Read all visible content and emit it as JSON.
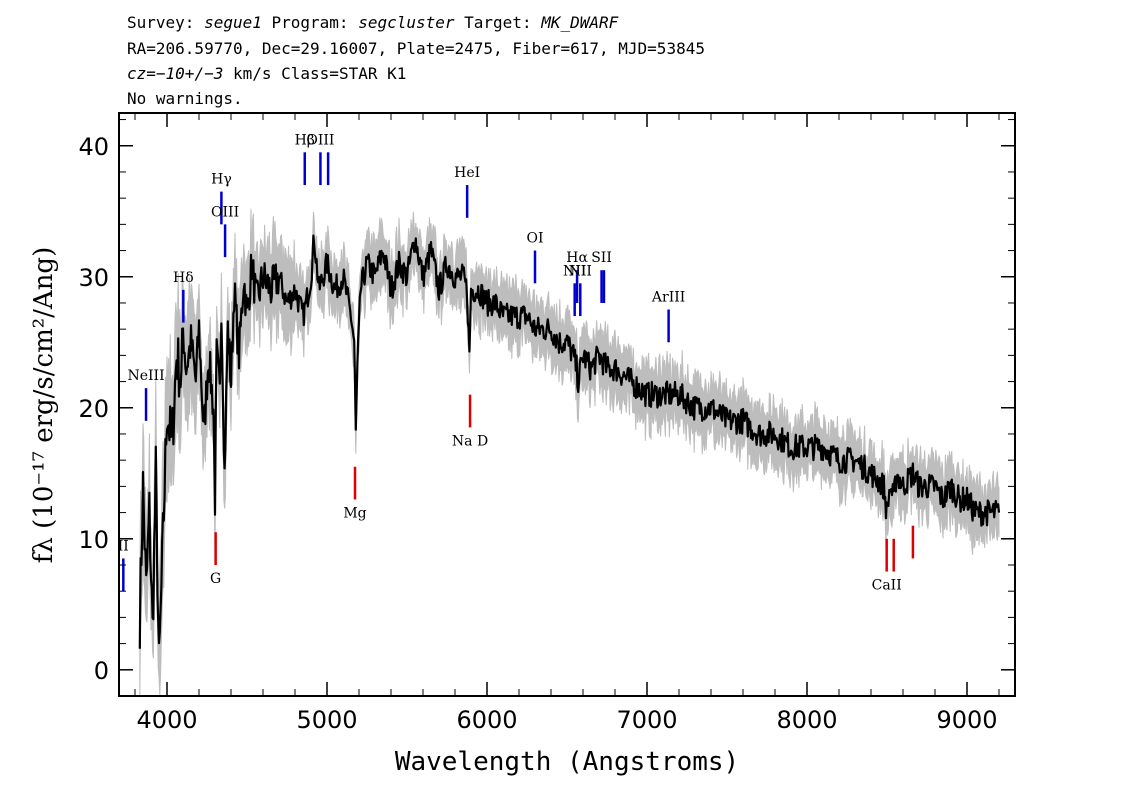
{
  "header": {
    "line1": {
      "survey_label": "Survey: ",
      "survey": "segue1",
      "program_label": " Program: ",
      "program": "segcluster",
      "target_label": " Target: ",
      "target": "MK_DWARF"
    },
    "line2": "RA=206.59770, Dec=29.16007, Plate=2475, Fiber=617, MJD=53845",
    "line3": {
      "cz_label": "cz=",
      "cz_value": "−10+/−3",
      "rest": " km/s Class=STAR K1"
    },
    "line4": "No warnings."
  },
  "chart_data": {
    "type": "line",
    "title": "",
    "xlabel": "Wavelength (Angstroms)",
    "ylabel": "fλ (10⁻¹⁷ erg/s/cm²/Ang)",
    "xlim": [
      3700,
      9300
    ],
    "ylim": [
      -2,
      42.5
    ],
    "xticks": [
      4000,
      5000,
      6000,
      7000,
      8000,
      9000
    ],
    "yticks": [
      0,
      10,
      20,
      30,
      40
    ],
    "grid": false,
    "series": [
      {
        "style": "flux",
        "color": "#000000",
        "x": [
          3830,
          3850,
          3870,
          3890,
          3910,
          3930,
          3950,
          3970,
          4000,
          4030,
          4060,
          4090,
          4100,
          4120,
          4150,
          4180,
          4200,
          4230,
          4260,
          4290,
          4300,
          4310,
          4330,
          4340,
          4360,
          4380,
          4400,
          4420,
          4450,
          4480,
          4500,
          4530,
          4560,
          4600,
          4650,
          4700,
          4750,
          4800,
          4850,
          4870,
          4900,
          4920,
          4950,
          5000,
          5050,
          5100,
          5150,
          5170,
          5180,
          5190,
          5210,
          5250,
          5300,
          5350,
          5400,
          5450,
          5500,
          5550,
          5600,
          5650,
          5700,
          5750,
          5800,
          5850,
          5875,
          5890,
          5900,
          5950,
          6000,
          6050,
          6100,
          6150,
          6200,
          6250,
          6300,
          6350,
          6400,
          6450,
          6500,
          6540,
          6560,
          6570,
          6600,
          6650,
          6700,
          6750,
          6800,
          6900,
          7000,
          7100,
          7200,
          7300,
          7400,
          7500,
          7600,
          7700,
          7800,
          7900,
          8000,
          8100,
          8200,
          8300,
          8400,
          8480,
          8498,
          8520,
          8542,
          8560,
          8600,
          8662,
          8700,
          8750,
          8800,
          8850,
          8900,
          8950,
          9000,
          9050,
          9100,
          9150,
          9200
        ],
        "y": [
          4,
          14,
          6,
          12,
          3,
          15,
          0,
          8,
          20,
          17,
          24,
          22,
          26,
          23,
          25,
          22,
          26,
          18,
          24,
          20,
          13,
          24,
          21,
          28,
          15,
          26,
          22,
          29,
          24,
          30,
          27,
          31,
          28,
          30,
          29,
          30,
          28,
          29,
          27,
          28,
          30,
          33,
          29,
          31,
          29,
          30,
          27,
          25,
          18,
          23,
          29,
          31,
          30,
          32,
          29,
          31,
          30,
          33,
          30,
          32,
          29,
          31,
          30,
          30,
          29,
          24,
          29,
          29,
          28,
          28,
          27,
          27,
          27,
          27,
          26,
          26,
          26,
          25,
          25,
          24,
          23,
          22,
          24,
          23,
          24,
          23,
          23,
          22,
          21,
          21,
          21,
          20,
          20,
          19,
          19,
          18,
          18,
          17,
          17,
          17,
          16,
          16,
          15,
          14,
          12,
          14,
          13,
          15,
          14,
          15,
          14,
          14,
          14,
          13,
          14,
          13,
          13,
          12,
          12,
          12,
          12
        ]
      }
    ],
    "emission_lines": [
      {
        "name": "NeIII",
        "wave": 3869,
        "y_bottom": 19.0,
        "y_top": 21.5
      },
      {
        "name": "OII",
        "wave": 3727,
        "y_bottom": 6.0,
        "y_top": 8.5,
        "label_text": "II"
      },
      {
        "name": "Hδ",
        "wave": 4102,
        "y_bottom": 26.5,
        "y_top": 29.0
      },
      {
        "name": "Hγ",
        "wave": 4340,
        "y_bottom": 34.0,
        "y_top": 36.5
      },
      {
        "name": "OIII",
        "wave": 4363,
        "y_bottom": 31.5,
        "y_top": 34.0
      },
      {
        "name": "Hβ",
        "wave": 4861,
        "y_bottom": 37.0,
        "y_top": 39.5
      },
      {
        "name": "OIII",
        "wave": 4959,
        "y_bottom": 37.0,
        "y_top": 39.5
      },
      {
        "name": "OIII",
        "wave": 5007,
        "y_bottom": 37.0,
        "y_top": 39.5,
        "label_text": ""
      },
      {
        "name": "HeI",
        "wave": 5876,
        "y_bottom": 34.5,
        "y_top": 37.0
      },
      {
        "name": "OI",
        "wave": 6300,
        "y_bottom": 29.5,
        "y_top": 32.0
      },
      {
        "name": "NII",
        "wave": 6548,
        "y_bottom": 27.0,
        "y_top": 29.5
      },
      {
        "name": "Hα",
        "wave": 6563,
        "y_bottom": 28.0,
        "y_top": 30.5
      },
      {
        "name": "NII",
        "wave": 6583,
        "y_bottom": 27.0,
        "y_top": 29.5
      },
      {
        "name": "SII",
        "wave": 6716,
        "y_bottom": 28.0,
        "y_top": 30.5
      },
      {
        "name": "SII",
        "wave": 6731,
        "y_bottom": 28.0,
        "y_top": 30.5,
        "label_text": ""
      },
      {
        "name": "ArIII",
        "wave": 7135,
        "y_bottom": 25.0,
        "y_top": 27.5
      }
    ],
    "absorption_lines": [
      {
        "name": "G",
        "wave": 4304,
        "y_bottom": 8.0,
        "y_top": 10.5
      },
      {
        "name": "Mg",
        "wave": 5175,
        "y_bottom": 13.0,
        "y_top": 15.5
      },
      {
        "name": "Na D",
        "wave": 5894,
        "y_bottom": 18.5,
        "y_top": 21.0
      },
      {
        "name": "CaII",
        "wave": 8498,
        "y_bottom": 7.5,
        "y_top": 10.0
      },
      {
        "name": "CaII",
        "wave": 8542,
        "y_bottom": 7.5,
        "y_top": 10.0,
        "label_text": ""
      },
      {
        "name": "CaII",
        "wave": 8662,
        "y_bottom": 8.5,
        "y_top": 11.0,
        "label_text": ""
      }
    ],
    "colors": {
      "flux": "#000000",
      "error_band": "#bdbdbd",
      "emission": "#0000cc",
      "absorption": "#dd0000",
      "label_stem": "#000000"
    }
  }
}
